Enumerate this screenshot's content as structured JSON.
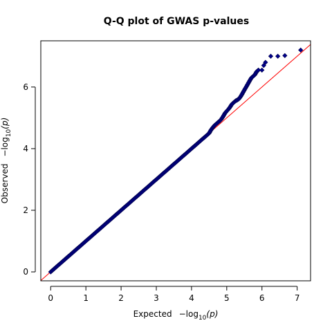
{
  "chart_data": {
    "type": "scatter",
    "title": "Q-Q plot of GWAS p-values",
    "xlabel": "Expected",
    "ylabel": "Observed",
    "xlabel_math": {
      "prefix": "−log",
      "sub": "10",
      "arg": "(p)"
    },
    "ylabel_math": {
      "prefix": "−log",
      "sub": "10",
      "arg": "(p)"
    },
    "xlim": [
      -0.28,
      7.38
    ],
    "ylim": [
      -0.29,
      7.5
    ],
    "xticks": [
      0,
      1,
      2,
      3,
      4,
      5,
      6,
      7
    ],
    "yticks": [
      0,
      2,
      4,
      6
    ],
    "grid": false,
    "reference_line": {
      "slope": 1,
      "intercept": 0,
      "color": "#ff0000"
    },
    "marker_fill": "#00008b",
    "marker_shape": "diamond",
    "points": {
      "x": [
        0.0,
        0.1,
        0.2,
        0.3,
        0.4,
        0.5,
        0.6,
        0.7,
        0.8,
        0.9,
        1.0,
        1.2,
        1.4,
        1.6,
        1.8,
        2.0,
        2.2,
        2.4,
        2.6,
        2.8,
        3.0,
        3.2,
        3.4,
        3.6,
        3.8,
        4.0,
        4.1,
        4.2,
        4.3,
        4.4,
        4.5,
        4.55,
        4.6,
        4.65,
        4.7,
        4.75,
        4.8,
        4.85,
        4.9,
        4.95,
        5.0,
        5.05,
        5.1,
        5.15,
        5.2,
        5.25,
        5.3,
        5.35,
        5.4,
        5.45,
        5.5,
        5.55,
        5.6,
        5.65,
        5.7,
        5.75,
        5.8,
        5.85,
        5.9,
        6.0,
        6.05,
        6.1,
        6.25,
        6.45,
        6.65,
        7.1
      ],
      "y": [
        0.0,
        0.1,
        0.2,
        0.3,
        0.4,
        0.5,
        0.6,
        0.7,
        0.8,
        0.9,
        1.0,
        1.2,
        1.4,
        1.6,
        1.8,
        2.0,
        2.2,
        2.4,
        2.6,
        2.8,
        3.0,
        3.2,
        3.4,
        3.6,
        3.8,
        4.0,
        4.1,
        4.2,
        4.3,
        4.4,
        4.5,
        4.6,
        4.68,
        4.75,
        4.8,
        4.85,
        4.9,
        4.96,
        5.05,
        5.15,
        5.22,
        5.28,
        5.36,
        5.45,
        5.5,
        5.55,
        5.58,
        5.62,
        5.7,
        5.8,
        5.9,
        6.0,
        6.1,
        6.2,
        6.3,
        6.35,
        6.4,
        6.5,
        6.55,
        6.55,
        6.7,
        6.8,
        7.0,
        7.0,
        7.02,
        7.2
      ]
    }
  }
}
